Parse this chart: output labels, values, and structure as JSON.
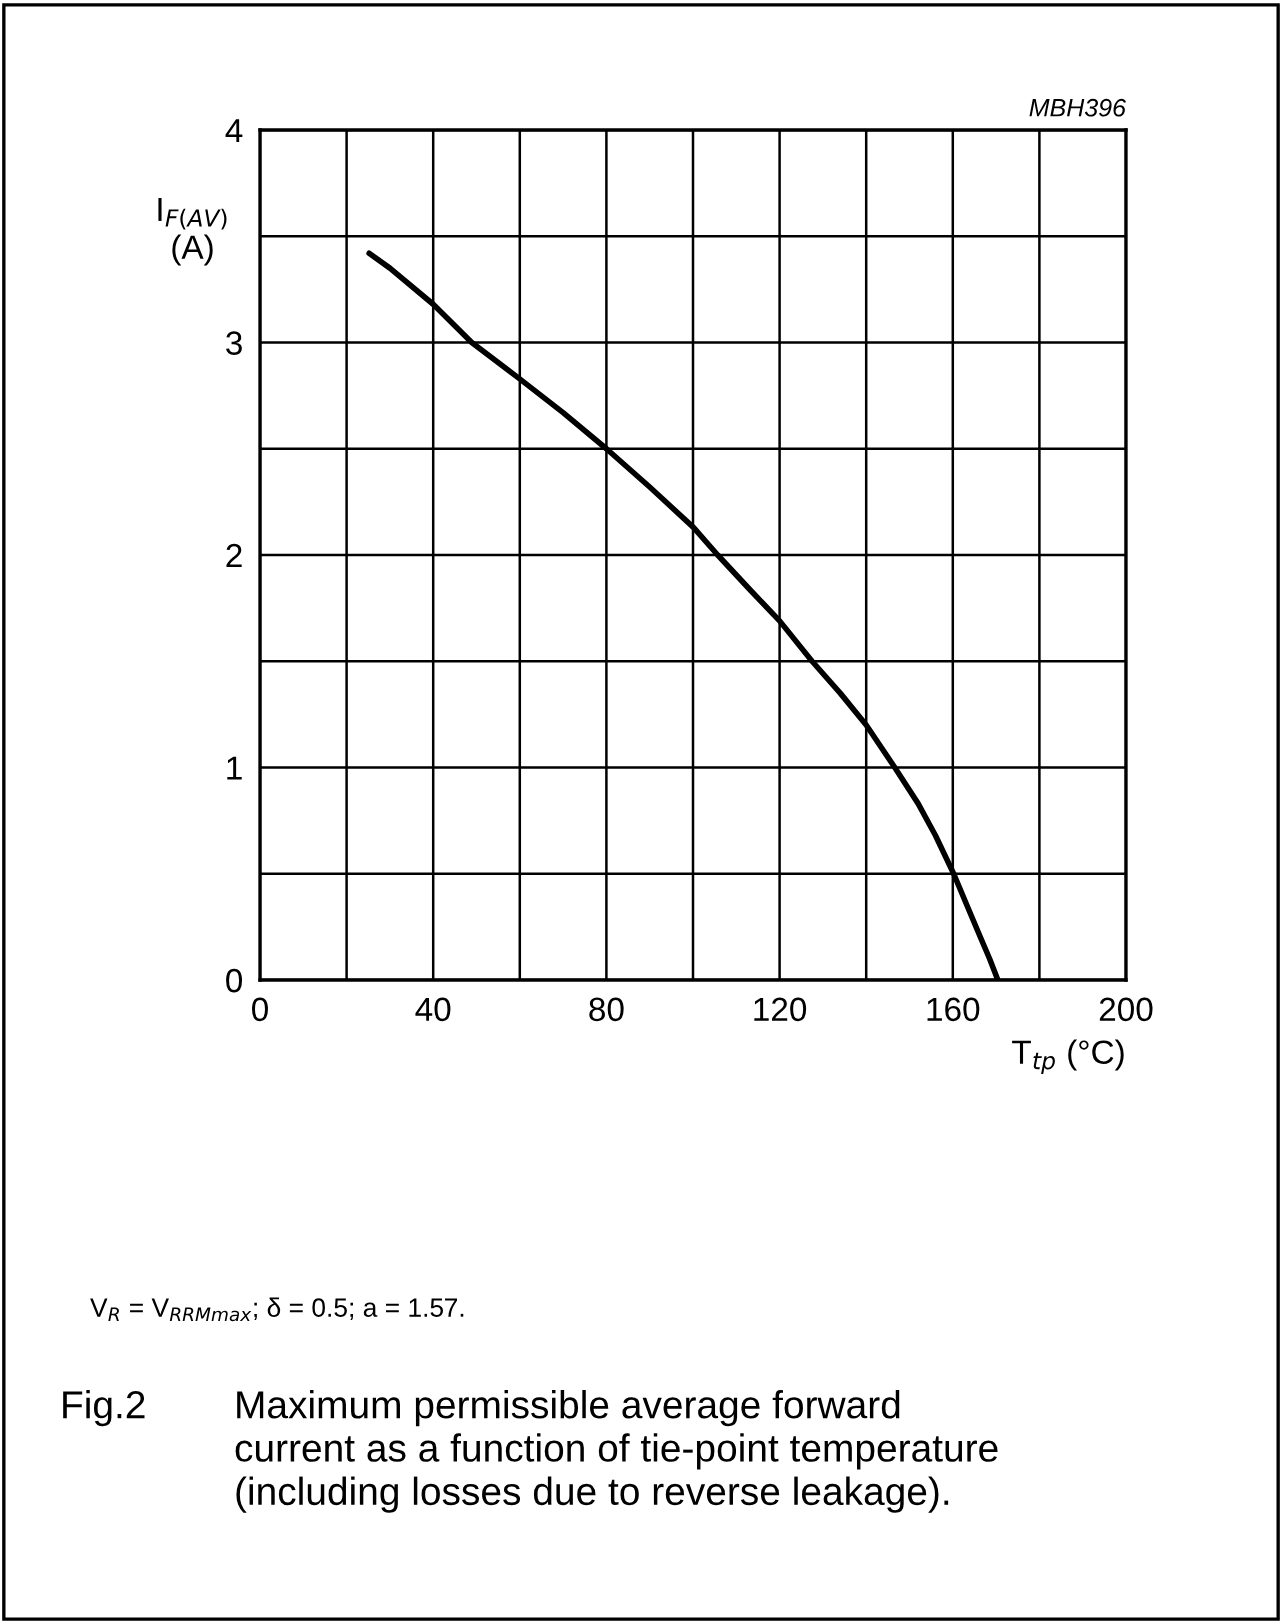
{
  "chart_data": {
    "type": "line",
    "x": [
      25.2,
      30,
      40,
      48.9,
      59.9,
      70,
      80,
      90,
      100.1,
      105.7,
      113,
      120,
      127.5,
      134,
      140,
      146.6,
      152,
      156,
      160.2,
      163.5,
      166.4,
      168.5,
      170.4
    ],
    "series": [
      {
        "color": "#000000",
        "values": [
          3.42,
          3.35,
          3.18,
          3.0,
          2.83,
          2.67,
          2.5,
          2.32,
          2.13,
          2.0,
          1.84,
          1.69,
          1.5,
          1.35,
          1.2,
          1.0,
          0.83,
          0.68,
          0.5,
          0.34,
          0.2,
          0.1,
          0.0
        ]
      }
    ],
    "xlabel": "T$_{tp}$ (°C)",
    "ylabel": "I$_{F(AV)}$\n(A)",
    "xlim": [
      0,
      200
    ],
    "ylim": [
      0,
      4
    ],
    "xticks": [
      0,
      {
        "value": 20,
        "label": null
      },
      40,
      {
        "value": 60,
        "label": null
      },
      80,
      {
        "value": 100,
        "label": null
      },
      120,
      {
        "value": 140,
        "label": null
      },
      160,
      {
        "value": 180,
        "label": null
      },
      200
    ],
    "yticks": [
      0,
      {
        "value": 0.5,
        "label": null
      },
      1,
      {
        "value": 1.5,
        "label": null
      },
      2,
      {
        "value": 2.5,
        "label": null
      },
      3,
      {
        "value": 3.5,
        "label": null
      },
      4
    ],
    "grid": true,
    "line_style": "solid",
    "marker": "none",
    "annotations": [
      "MBH396",
      "V$_{R}$ = V$_{RRMmax}$; δ = 0.5; a = 1.57.",
      "Fig.2",
      "Maximum permissible average forward\ncurrent as a function of tie-point temperature\n(including losses due to reverse leakage)."
    ]
  }
}
